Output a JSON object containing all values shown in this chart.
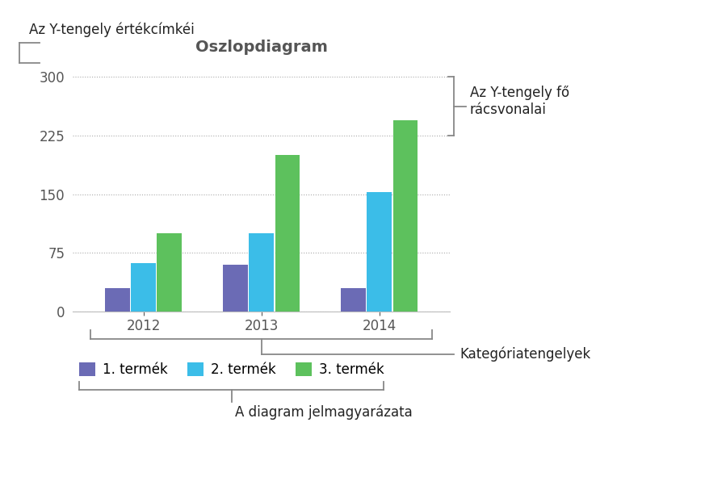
{
  "title": "Oszlopdiagram",
  "categories": [
    "2012",
    "2013",
    "2014"
  ],
  "series": [
    {
      "name": "1. termék",
      "values": [
        30,
        60,
        30
      ],
      "color": "#6B6BB5"
    },
    {
      "name": "2. termék",
      "values": [
        62,
        100,
        153
      ],
      "color": "#3BBDE8"
    },
    {
      "name": "3. termék",
      "values": [
        100,
        200,
        245
      ],
      "color": "#5DC15D"
    }
  ],
  "yticks": [
    0,
    75,
    150,
    225,
    300
  ],
  "ylim": [
    0,
    315
  ],
  "bar_width": 0.22,
  "background_color": "#ffffff",
  "grid_color": "#aaaaaa",
  "title_fontsize": 14,
  "tick_fontsize": 12,
  "legend_fontsize": 12,
  "annotation_fontsize": 12,
  "annotation_color": "#222222",
  "bracket_color": "#888888",
  "annotation_y_axis_label": "Az Y-tengely értékcímkéi",
  "annotation_y_gridlines": "Az Y-tengely fő\nrácsvonalai",
  "annotation_x_axis": "Kategóriatengelyek",
  "annotation_legend": "A diagram jelmagyarázata"
}
